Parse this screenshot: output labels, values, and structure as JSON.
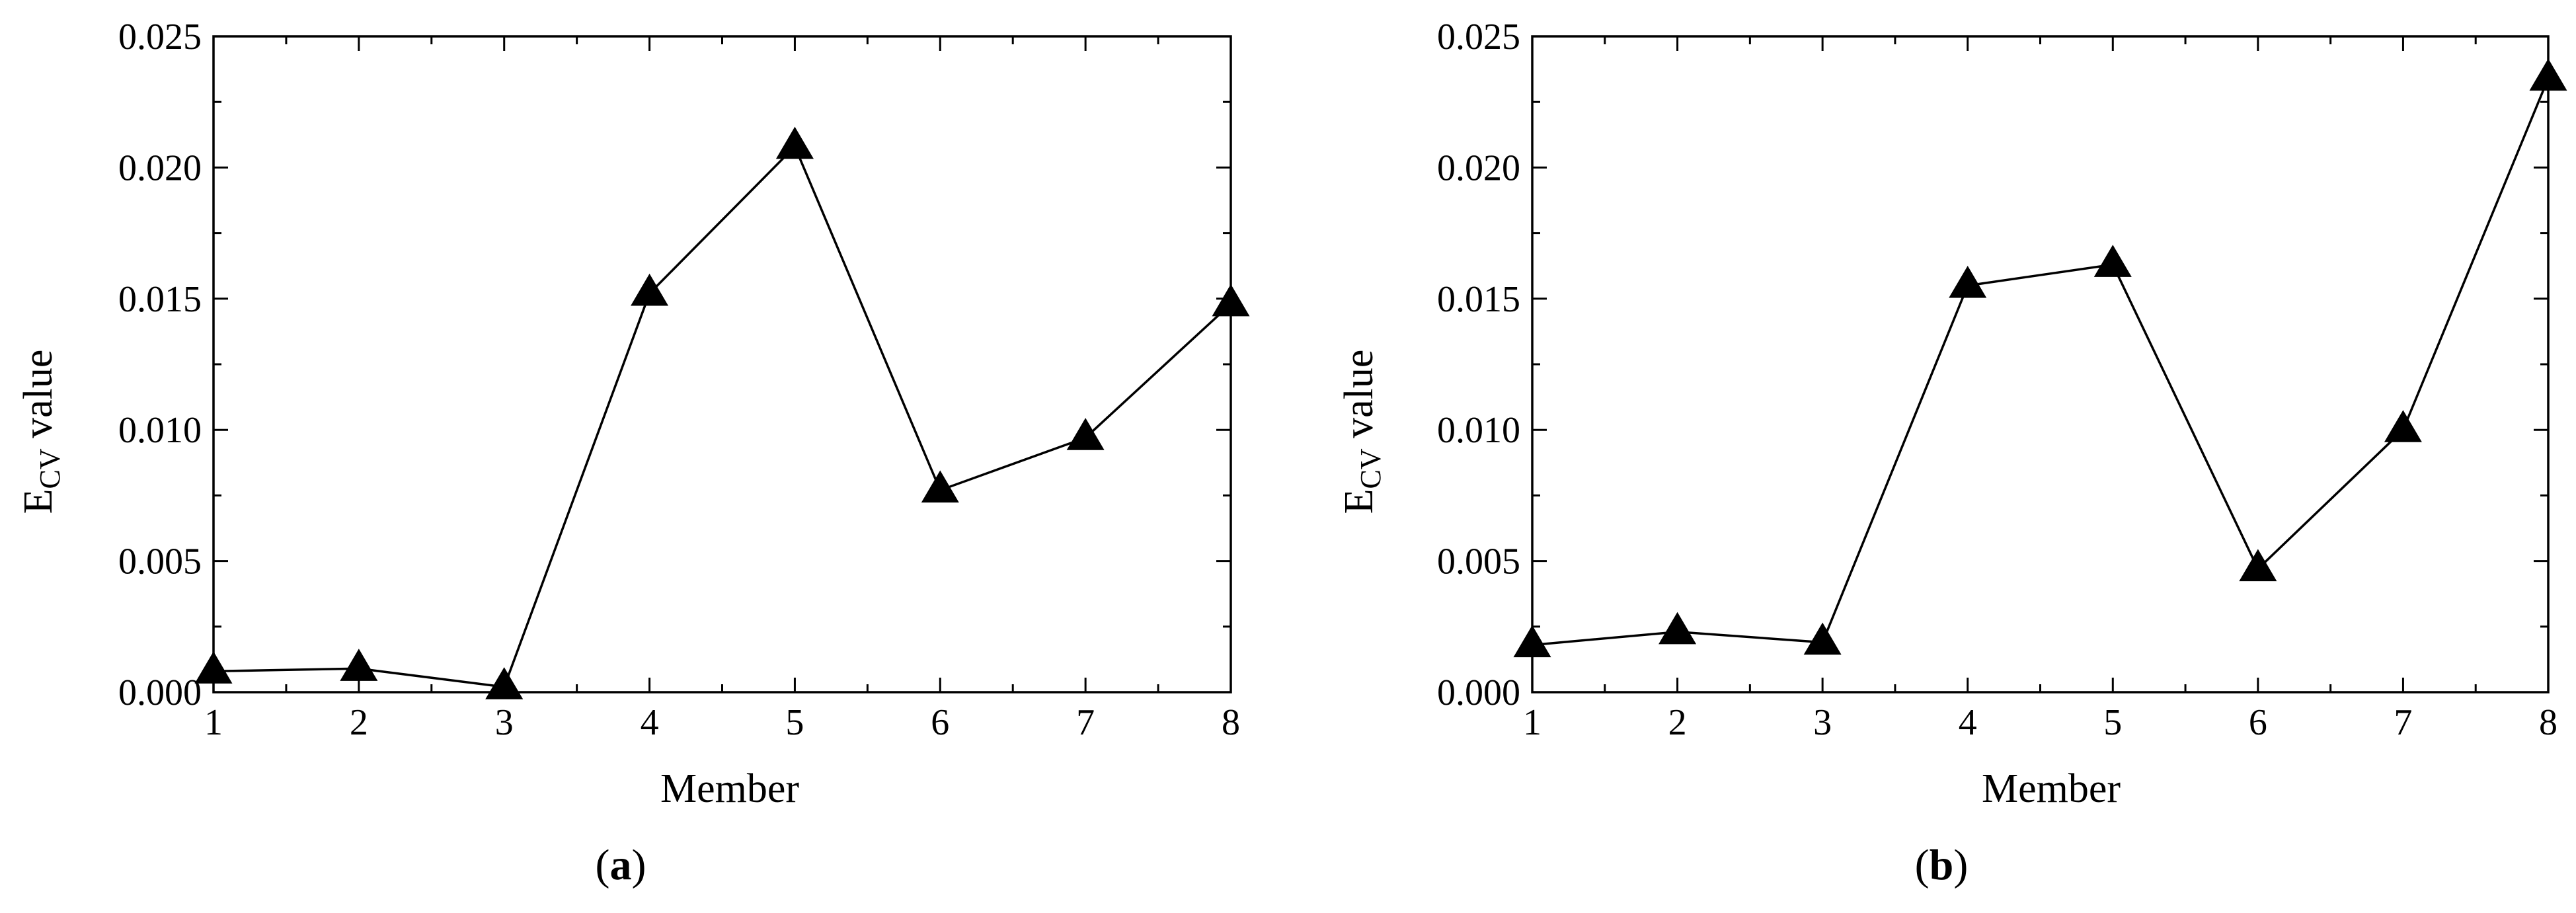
{
  "figure": {
    "panels": [
      {
        "label_open": "(",
        "label_letter": "a",
        "label_close": ")"
      },
      {
        "label_open": "(",
        "label_letter": "b",
        "label_close": ")"
      }
    ]
  },
  "chart_data": [
    {
      "type": "line",
      "panel": "a",
      "xlabel": "Member",
      "ylabel_main": "E",
      "ylabel_sub": "CV",
      "ylabel_rest": " value",
      "x": [
        1,
        2,
        3,
        4,
        5,
        6,
        7,
        8
      ],
      "values": [
        0.0008,
        0.0009,
        0.0002,
        0.0152,
        0.0208,
        0.0077,
        0.0097,
        0.0148
      ],
      "marker": "triangle",
      "xlim": [
        1,
        8
      ],
      "ylim": [
        0,
        0.025
      ],
      "xticks": [
        "1",
        "2",
        "3",
        "4",
        "5",
        "6",
        "7",
        "8"
      ],
      "yticks": [
        "0.000",
        "0.005",
        "0.010",
        "0.015",
        "0.020",
        "0.025"
      ],
      "grid": false,
      "color": "#000000"
    },
    {
      "type": "line",
      "panel": "b",
      "xlabel": "Member",
      "ylabel_main": "E",
      "ylabel_sub": "CV",
      "ylabel_rest": " value",
      "x": [
        1,
        2,
        3,
        4,
        5,
        6,
        7,
        8
      ],
      "values": [
        0.0018,
        0.0023,
        0.0019,
        0.0155,
        0.0163,
        0.0047,
        0.01,
        0.0234
      ],
      "marker": "triangle",
      "xlim": [
        1,
        8
      ],
      "ylim": [
        0,
        0.025
      ],
      "xticks": [
        "1",
        "2",
        "3",
        "4",
        "5",
        "6",
        "7",
        "8"
      ],
      "yticks": [
        "0.000",
        "0.005",
        "0.010",
        "0.015",
        "0.020",
        "0.025"
      ],
      "grid": false,
      "color": "#000000"
    }
  ]
}
